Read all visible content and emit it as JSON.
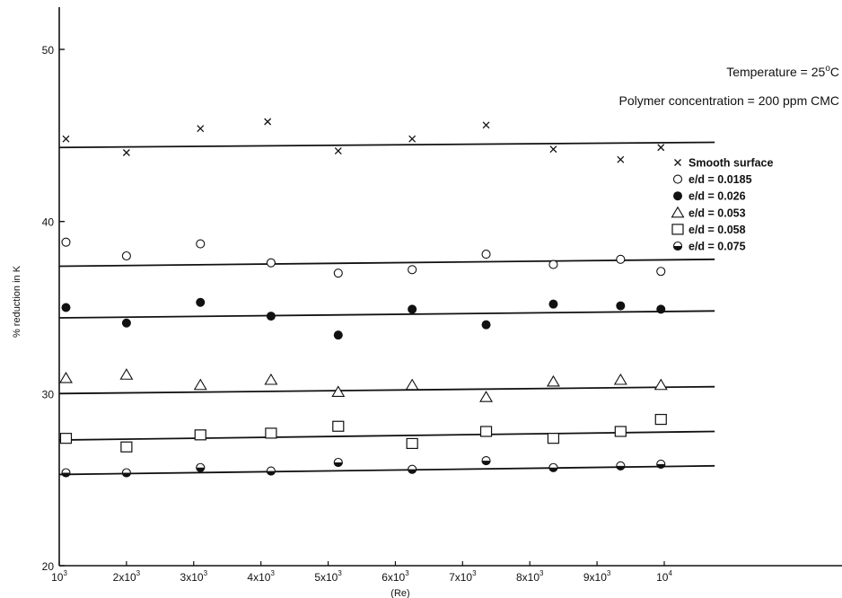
{
  "chart_data": {
    "type": "scatter",
    "title": "",
    "xlabel": "(Re)",
    "ylabel": "% reduction in K",
    "xlim": [
      1000,
      10750
    ],
    "ylim": [
      20,
      52
    ],
    "x_ticks": [
      1000,
      2000,
      3000,
      4000,
      5000,
      6000,
      7000,
      8000,
      9000,
      10000
    ],
    "x_tick_labels": [
      {
        "base": "10",
        "exp": "3"
      },
      {
        "base": "2x10",
        "exp": "3"
      },
      {
        "base": "3x10",
        "exp": "3"
      },
      {
        "base": "4x10",
        "exp": "3"
      },
      {
        "base": "5x10",
        "exp": "3"
      },
      {
        "base": "6x10",
        "exp": "3"
      },
      {
        "base": "7x10",
        "exp": "3"
      },
      {
        "base": "8x10",
        "exp": "3"
      },
      {
        "base": "9x10",
        "exp": "3"
      },
      {
        "base": "10",
        "exp": "4"
      }
    ],
    "y_ticks": [
      20,
      30,
      40,
      50
    ],
    "y_tick_labels": [
      "20",
      "30",
      "40",
      "50"
    ],
    "annotations": {
      "temperature": {
        "text": "Temperature = 25",
        "deg": "o",
        "unit": "C"
      },
      "polymer": "Polymer concentration = 200 ppm CMC"
    },
    "legend_position": "right",
    "series": [
      {
        "name": "Smooth surface",
        "legend_label": "Smooth surface",
        "marker": "x",
        "x": [
          1100,
          2000,
          3100,
          4100,
          5150,
          6250,
          7350,
          8350,
          9350,
          9950
        ],
        "y": [
          44.8,
          44.0,
          45.4,
          45.8,
          44.1,
          44.8,
          45.6,
          44.2,
          43.6,
          44.3
        ],
        "fit": [
          44.3,
          44.6
        ]
      },
      {
        "name": "e/d = 0.0185",
        "legend_label": "e/d = 0.0185",
        "marker": "circle-open",
        "x": [
          1100,
          2000,
          3100,
          4150,
          5150,
          6250,
          7350,
          8350,
          9350,
          9950
        ],
        "y": [
          38.8,
          38.0,
          38.7,
          37.6,
          37.0,
          37.2,
          38.1,
          37.5,
          37.8,
          37.1
        ],
        "fit": [
          37.4,
          37.8
        ]
      },
      {
        "name": "e/d = 0.026",
        "legend_label": "e/d = 0.026",
        "marker": "circle-filled",
        "x": [
          1100,
          2000,
          3100,
          4150,
          5150,
          6250,
          7350,
          8350,
          9350,
          9950
        ],
        "y": [
          35.0,
          34.1,
          35.3,
          34.5,
          33.4,
          34.9,
          34.0,
          35.2,
          35.1,
          34.9
        ],
        "fit": [
          34.4,
          34.8
        ]
      },
      {
        "name": "e/d = 0.053",
        "legend_label": "e/d = 0.053",
        "marker": "triangle-open",
        "x": [
          1100,
          2000,
          3100,
          4150,
          5150,
          6250,
          7350,
          8350,
          9350,
          9950
        ],
        "y": [
          30.9,
          31.1,
          30.5,
          30.8,
          30.1,
          30.5,
          29.8,
          30.7,
          30.8,
          30.5
        ],
        "fit": [
          30.0,
          30.4
        ]
      },
      {
        "name": "e/d = 0.058",
        "legend_label": "e/d = 0.058",
        "marker": "square-open",
        "x": [
          1100,
          2000,
          3100,
          4150,
          5150,
          6250,
          7350,
          8350,
          9350,
          9950
        ],
        "y": [
          27.4,
          26.9,
          27.6,
          27.7,
          28.1,
          27.1,
          27.8,
          27.4,
          27.8,
          28.5
        ],
        "fit": [
          27.3,
          27.8
        ]
      },
      {
        "name": "e/d = 0.075",
        "legend_label": "e/d = 0.075",
        "marker": "circle-half",
        "x": [
          1100,
          2000,
          3100,
          4150,
          5150,
          6250,
          7350,
          8350,
          9350,
          9950
        ],
        "y": [
          25.4,
          25.4,
          25.7,
          25.5,
          26.0,
          25.6,
          26.1,
          25.7,
          25.8,
          25.9
        ],
        "fit": [
          25.3,
          25.8
        ]
      }
    ]
  }
}
